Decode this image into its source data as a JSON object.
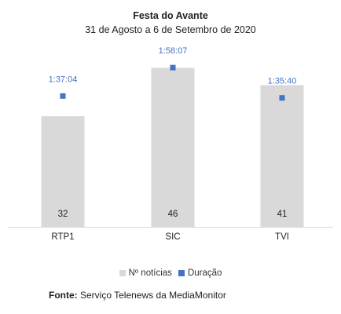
{
  "chart_data": {
    "type": "bar",
    "title": "Festa do Avante",
    "subtitle": "31 de Agosto a 6 de Setembro  de 2020",
    "categories": [
      "RTP1",
      "SIC",
      "TVI"
    ],
    "series": [
      {
        "name": "Nº notícias",
        "kind": "bar",
        "color": "#d9d9d9",
        "values": [
          32,
          46,
          41
        ],
        "labels": [
          "32",
          "46",
          "41"
        ]
      },
      {
        "name": "Duração",
        "kind": "marker",
        "color": "#4472c4",
        "values": [
          5824,
          7087,
          5740
        ],
        "labels": [
          "1:37:04",
          "1:58:07",
          "1:35:40"
        ]
      }
    ],
    "ylim_bars": [
      0,
      52
    ],
    "ylim_duration": [
      0,
      8000
    ],
    "legend_position": "bottom",
    "grid": false
  },
  "source": {
    "label": "Fonte:",
    "text": " Serviço Telenews da MediaMonitor"
  }
}
